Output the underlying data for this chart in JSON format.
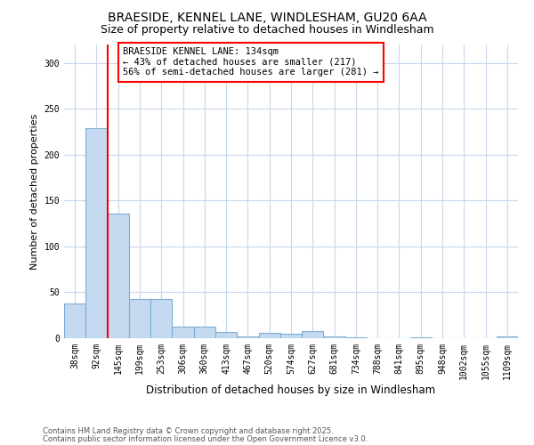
{
  "title1": "BRAESIDE, KENNEL LANE, WINDLESHAM, GU20 6AA",
  "title2": "Size of property relative to detached houses in Windlesham",
  "xlabel": "Distribution of detached houses by size in Windlesham",
  "ylabel": "Number of detached properties",
  "categories": [
    "38sqm",
    "92sqm",
    "145sqm",
    "199sqm",
    "253sqm",
    "306sqm",
    "360sqm",
    "413sqm",
    "467sqm",
    "520sqm",
    "574sqm",
    "627sqm",
    "681sqm",
    "734sqm",
    "788sqm",
    "841sqm",
    "895sqm",
    "948sqm",
    "1002sqm",
    "1055sqm",
    "1109sqm"
  ],
  "values": [
    38,
    229,
    136,
    43,
    43,
    13,
    13,
    7,
    2,
    6,
    5,
    8,
    2,
    1,
    0,
    0,
    1,
    0,
    0,
    0,
    2
  ],
  "bar_color": "#c5d9f0",
  "bar_edge_color": "#7bafd4",
  "background_color": "#ffffff",
  "plot_bg_color": "#ffffff",
  "grid_color": "#c8d8ec",
  "red_line_x": 1.5,
  "annotation_title": "BRAESIDE KENNEL LANE: 134sqm",
  "annotation_line1": "← 43% of detached houses are smaller (217)",
  "annotation_line2": "56% of semi-detached houses are larger (281) →",
  "footer_line1": "Contains HM Land Registry data © Crown copyright and database right 2025.",
  "footer_line2": "Contains public sector information licensed under the Open Government Licence v3.0.",
  "ylim": [
    0,
    320
  ],
  "yticks": [
    0,
    50,
    100,
    150,
    200,
    250,
    300
  ],
  "title1_fontsize": 10,
  "title2_fontsize": 9,
  "xlabel_fontsize": 8.5,
  "ylabel_fontsize": 8,
  "tick_fontsize": 7,
  "ann_fontsize": 7.5,
  "footer_fontsize": 6
}
